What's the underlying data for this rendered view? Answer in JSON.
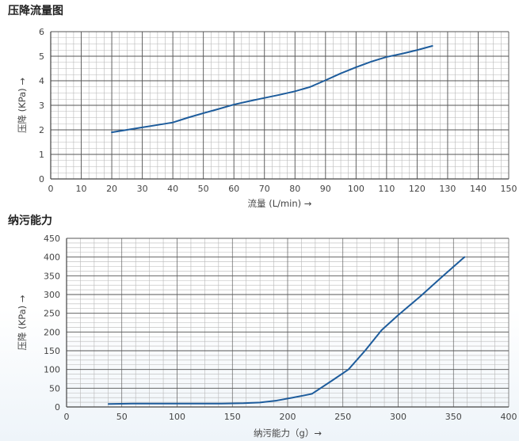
{
  "charts": [
    {
      "title": "压降流量图"
    },
    {
      "title": "纳污能力"
    }
  ],
  "colors": {
    "line": "#1d5c9c",
    "grid_minor": "#b8b8b8",
    "grid_major": "#555555",
    "axis": "#444444"
  },
  "chart_data": [
    {
      "type": "line",
      "title": "压降流量图",
      "xlabel": "流量 (L/min) →",
      "ylabel": "压降 (KPa) →",
      "xlim": [
        0,
        150
      ],
      "ylim": [
        0,
        6
      ],
      "x_ticks": [
        0,
        10,
        20,
        30,
        40,
        50,
        60,
        70,
        80,
        90,
        100,
        110,
        120,
        130,
        140,
        150
      ],
      "y_ticks": [
        0,
        1,
        2,
        3,
        4,
        5,
        6
      ],
      "grid": true,
      "series": [
        {
          "x": [
            20,
            25,
            30,
            35,
            40,
            45,
            50,
            55,
            60,
            65,
            70,
            75,
            80,
            85,
            90,
            95,
            100,
            105,
            110,
            115,
            120,
            125
          ],
          "y": [
            1.9,
            2.0,
            2.1,
            2.2,
            2.3,
            2.5,
            2.68,
            2.85,
            3.03,
            3.17,
            3.3,
            3.43,
            3.57,
            3.75,
            4.02,
            4.3,
            4.55,
            4.78,
            4.97,
            5.1,
            5.25,
            5.42
          ]
        }
      ]
    },
    {
      "type": "line",
      "title": "纳污能力",
      "xlabel": "纳污能力（g）→",
      "ylabel": "压降 (KPa) →",
      "xlim": [
        0,
        400
      ],
      "ylim": [
        0,
        450
      ],
      "x_ticks": [
        0,
        50,
        100,
        150,
        200,
        250,
        300,
        350,
        400
      ],
      "y_ticks": [
        0,
        50,
        100,
        150,
        200,
        250,
        300,
        350,
        400,
        450
      ],
      "grid": true,
      "series": [
        {
          "x": [
            38,
            60,
            80,
            100,
            120,
            140,
            160,
            175,
            190,
            205,
            222,
            240,
            255,
            270,
            285,
            300,
            320,
            340,
            360
          ],
          "y": [
            8,
            9,
            9,
            9,
            9,
            9,
            10,
            12,
            17,
            25,
            35,
            70,
            100,
            150,
            205,
            245,
            295,
            348,
            400
          ]
        }
      ]
    }
  ]
}
